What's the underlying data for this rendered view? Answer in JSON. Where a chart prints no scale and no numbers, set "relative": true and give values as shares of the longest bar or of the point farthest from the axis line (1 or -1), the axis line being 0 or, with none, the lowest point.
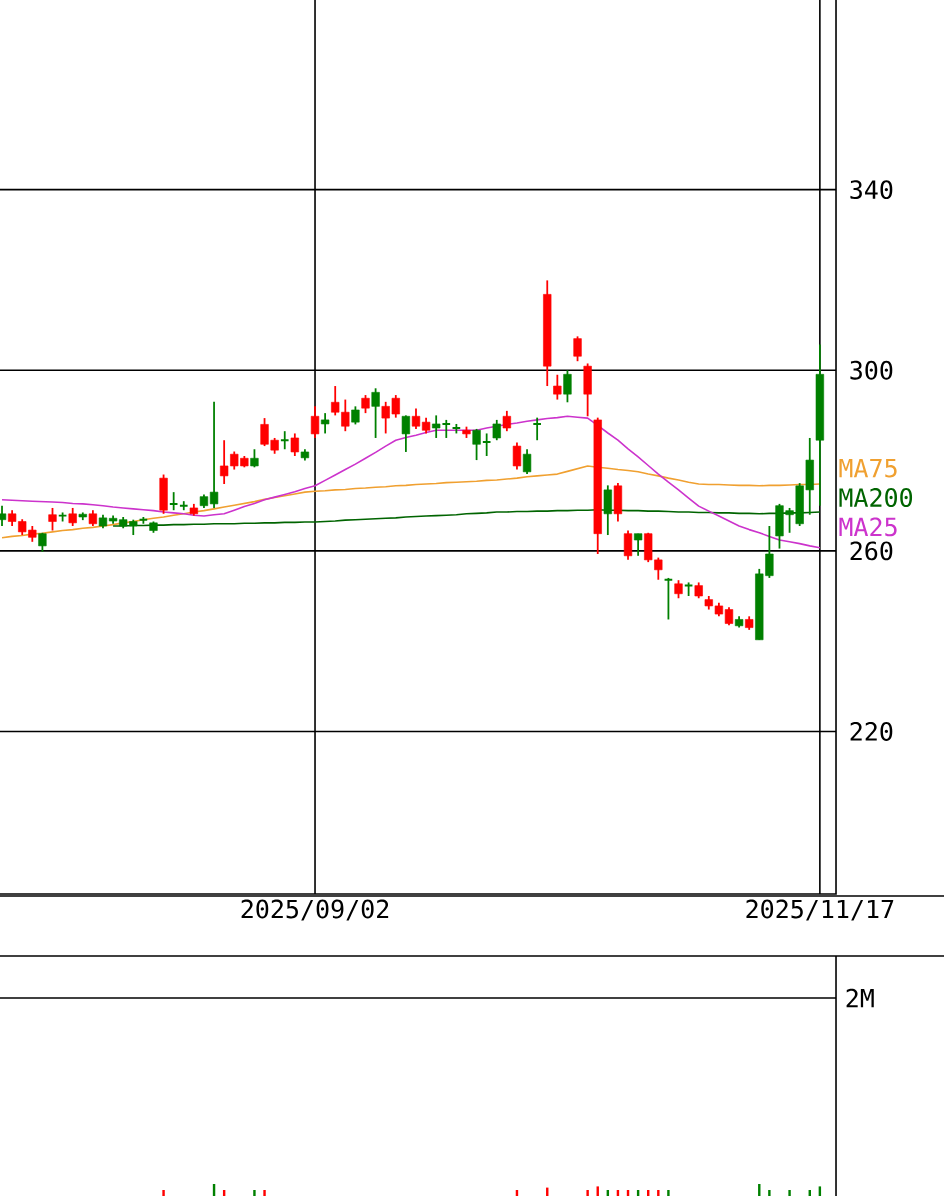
{
  "chart_data": [
    {
      "type": "candlestick",
      "categories": [
        null,
        null,
        null,
        null,
        null,
        null,
        null,
        null,
        null,
        null,
        null,
        null,
        null,
        null,
        null,
        null,
        null,
        null,
        null,
        null,
        null,
        null,
        null,
        null,
        null,
        null,
        null,
        null,
        null,
        null,
        null,
        "2025/09/02",
        null,
        null,
        null,
        null,
        null,
        null,
        null,
        null,
        null,
        null,
        null,
        null,
        null,
        null,
        null,
        null,
        null,
        null,
        null,
        null,
        null,
        null,
        null,
        null,
        null,
        null,
        null,
        null,
        null,
        null,
        null,
        null,
        null,
        null,
        null,
        null,
        null,
        null,
        null,
        null,
        null,
        null,
        null,
        null,
        null,
        null,
        null,
        null,
        null,
        "2025/11/17"
      ],
      "ohlc": [
        [
          266.9,
          270.0,
          265.5,
          268.2
        ],
        [
          268.2,
          269.0,
          265.5,
          266.5
        ],
        [
          266.5,
          267.0,
          263.5,
          264.2
        ],
        [
          264.6,
          265.5,
          262.0,
          263.0
        ],
        [
          261.1,
          264.0,
          259.8,
          263.8
        ],
        [
          268.0,
          269.5,
          264.5,
          266.5
        ],
        [
          267.8,
          268.5,
          266.5,
          267.8
        ],
        [
          268.2,
          269.5,
          265.5,
          266.2
        ],
        [
          267.5,
          268.5,
          266.8,
          268.1
        ],
        [
          268.2,
          269.0,
          265.5,
          266.0
        ],
        [
          265.5,
          268.0,
          265.0,
          267.3
        ],
        [
          266.6,
          267.8,
          266.0,
          267.2
        ],
        [
          265.5,
          267.5,
          265.0,
          266.9
        ],
        [
          265.5,
          266.9,
          263.5,
          266.5
        ],
        [
          266.9,
          267.5,
          266.0,
          266.9
        ],
        [
          264.5,
          266.5,
          264.0,
          266.2
        ],
        [
          276.1,
          276.9,
          268.2,
          269.0
        ],
        [
          270.4,
          273.0,
          269.0,
          270.4
        ],
        [
          270.0,
          271.0,
          269.0,
          270.0
        ],
        [
          269.5,
          270.4,
          267.8,
          268.2
        ],
        [
          270.0,
          272.5,
          269.5,
          272.0
        ],
        [
          270.4,
          293.0,
          269.5,
          273.0
        ],
        [
          278.8,
          284.5,
          274.8,
          276.6
        ],
        [
          281.4,
          282.0,
          278.0,
          278.8
        ],
        [
          280.5,
          281.0,
          278.5,
          278.8
        ],
        [
          278.8,
          282.5,
          278.5,
          280.5
        ],
        [
          288.0,
          289.4,
          283.2,
          283.6
        ],
        [
          284.5,
          285.0,
          281.5,
          282.3
        ],
        [
          284.5,
          286.5,
          282.5,
          284.5
        ],
        [
          285.0,
          286.0,
          281.0,
          281.9
        ],
        [
          280.6,
          282.5,
          280.0,
          281.9
        ],
        [
          289.8,
          292.0,
          285.0,
          285.9
        ],
        [
          288.1,
          290.5,
          286.0,
          289.0
        ],
        [
          292.9,
          296.5,
          290.0,
          290.7
        ],
        [
          290.7,
          293.5,
          286.5,
          287.6
        ],
        [
          288.5,
          292.0,
          288.0,
          291.2
        ],
        [
          293.8,
          294.5,
          290.5,
          291.6
        ],
        [
          292.0,
          296.0,
          285.0,
          295.1
        ],
        [
          292.0,
          293.0,
          286.0,
          289.4
        ],
        [
          293.8,
          294.5,
          289.5,
          290.3
        ],
        [
          285.9,
          290.0,
          281.9,
          289.8
        ],
        [
          289.8,
          291.5,
          287.0,
          287.6
        ],
        [
          288.5,
          289.5,
          286.0,
          286.7
        ],
        [
          287.2,
          290.0,
          285.0,
          288.1
        ],
        [
          288.1,
          289.0,
          285.0,
          288.1
        ],
        [
          287.2,
          288.1,
          286.0,
          287.2
        ],
        [
          286.7,
          287.5,
          285.0,
          285.9
        ],
        [
          283.6,
          287.0,
          280.1,
          286.7
        ],
        [
          284.1,
          286.0,
          281.0,
          284.1
        ],
        [
          285.0,
          289.0,
          284.5,
          288.1
        ],
        [
          289.8,
          291.0,
          286.5,
          287.2
        ],
        [
          283.2,
          284.0,
          278.0,
          278.8
        ],
        [
          277.5,
          282.5,
          277.0,
          281.4
        ],
        [
          288.1,
          289.5,
          284.5,
          288.1
        ],
        [
          316.8,
          319.9,
          296.5,
          300.9
        ],
        [
          296.5,
          299.0,
          293.5,
          294.7
        ],
        [
          294.7,
          300.0,
          292.9,
          299.1
        ],
        [
          307.0,
          307.5,
          302.0,
          303.1
        ],
        [
          300.9,
          301.5,
          289.8,
          294.7
        ],
        [
          289.0,
          289.5,
          259.3,
          263.8
        ],
        [
          268.2,
          274.5,
          263.5,
          273.5
        ],
        [
          274.4,
          275.0,
          266.5,
          268.2
        ],
        [
          263.8,
          264.5,
          258.0,
          258.9
        ],
        [
          262.4,
          263.8,
          258.9,
          263.8
        ],
        [
          263.8,
          264.0,
          257.5,
          258.0
        ],
        [
          258.0,
          258.5,
          253.6,
          255.8
        ],
        [
          253.6,
          254.0,
          244.8,
          253.6
        ],
        [
          252.7,
          253.5,
          249.5,
          250.5
        ],
        [
          252.3,
          253.0,
          250.0,
          252.3
        ],
        [
          252.3,
          253.0,
          249.5,
          250.0
        ],
        [
          249.2,
          250.0,
          247.0,
          247.8
        ],
        [
          247.8,
          248.5,
          245.5,
          246.0
        ],
        [
          247.0,
          247.5,
          243.5,
          243.9
        ],
        [
          243.4,
          245.5,
          243.0,
          244.8
        ],
        [
          244.8,
          245.5,
          242.5,
          243.0
        ],
        [
          240.3,
          256.0,
          240.3,
          254.9
        ],
        [
          254.5,
          265.5,
          254.0,
          259.3
        ],
        [
          263.3,
          270.4,
          260.5,
          270.0
        ],
        [
          268.0,
          269.5,
          264.0,
          268.9
        ],
        [
          266.0,
          275.0,
          265.5,
          274.4
        ],
        [
          273.5,
          285.0,
          268.0,
          280.1
        ],
        [
          284.5,
          305.7,
          270.0,
          299.1
        ]
      ],
      "colors": [
        "#008000",
        "#ff0000",
        "#ff0000",
        "#ff0000",
        "#008000",
        "#ff0000",
        "#008000",
        "#ff0000",
        "#008000",
        "#ff0000",
        "#008000",
        "#008000",
        "#008000",
        "#008000",
        "#008000",
        "#008000",
        "#ff0000",
        "#008000",
        "#008000",
        "#ff0000",
        "#008000",
        "#008000",
        "#ff0000",
        "#ff0000",
        "#ff0000",
        "#008000",
        "#ff0000",
        "#ff0000",
        "#008000",
        "#ff0000",
        "#008000",
        "#ff0000",
        "#008000",
        "#ff0000",
        "#ff0000",
        "#008000",
        "#ff0000",
        "#008000",
        "#ff0000",
        "#ff0000",
        "#008000",
        "#ff0000",
        "#ff0000",
        "#008000",
        "#008000",
        "#008000",
        "#ff0000",
        "#008000",
        "#008000",
        "#008000",
        "#ff0000",
        "#ff0000",
        "#008000",
        "#008000",
        "#ff0000",
        "#ff0000",
        "#008000",
        "#ff0000",
        "#ff0000",
        "#ff0000",
        "#008000",
        "#ff0000",
        "#ff0000",
        "#008000",
        "#ff0000",
        "#ff0000",
        "#008000",
        "#ff0000",
        "#008000",
        "#ff0000",
        "#ff0000",
        "#ff0000",
        "#ff0000",
        "#008000",
        "#ff0000",
        "#008000",
        "#008000",
        "#008000",
        "#008000",
        "#008000",
        "#008000",
        "#008000"
      ],
      "series": [
        {
          "type": "line",
          "name": "MA75",
          "color": "#f0a030",
          "values": [
            262.9,
            263.2,
            263.4,
            263.7,
            263.9,
            264.2,
            264.5,
            264.7,
            265.0,
            265.2,
            265.5,
            265.8,
            266.2,
            266.5,
            266.9,
            267.2,
            267.5,
            267.9,
            268.2,
            268.6,
            268.9,
            269.3,
            269.7,
            270.1,
            270.5,
            270.9,
            271.4,
            271.8,
            272.2,
            272.6,
            273.0,
            273.2,
            273.3,
            273.5,
            273.6,
            273.8,
            273.9,
            274.1,
            274.2,
            274.4,
            274.5,
            274.7,
            274.8,
            274.9,
            275.1,
            275.2,
            275.3,
            275.4,
            275.6,
            275.7,
            275.9,
            276.1,
            276.4,
            276.6,
            276.8,
            277.0,
            277.6,
            278.2,
            278.8,
            278.5,
            278.3,
            278.0,
            277.8,
            277.5,
            277.0,
            276.6,
            276.1,
            275.7,
            275.2,
            274.8,
            274.7,
            274.7,
            274.6,
            274.5,
            274.5,
            274.4,
            274.5,
            274.5,
            274.6,
            274.7,
            274.7,
            274.8
          ]
        },
        {
          "type": "line",
          "name": "MA200",
          "color": "#006400",
          "values": [
            null,
            null,
            null,
            null,
            null,
            null,
            null,
            null,
            null,
            null,
            null,
            265.5,
            265.5,
            265.6,
            265.6,
            265.7,
            265.7,
            265.8,
            265.8,
            265.9,
            265.9,
            266.0,
            266.0,
            266.0,
            266.1,
            266.1,
            266.2,
            266.2,
            266.3,
            266.3,
            266.4,
            266.4,
            266.5,
            266.6,
            266.8,
            266.9,
            267.0,
            267.1,
            267.2,
            267.3,
            267.5,
            267.6,
            267.7,
            267.8,
            267.9,
            268.0,
            268.2,
            268.3,
            268.4,
            268.6,
            268.6,
            268.7,
            268.7,
            268.8,
            268.8,
            268.9,
            268.9,
            269.0,
            269.0,
            269.1,
            269.0,
            269.0,
            268.9,
            268.9,
            268.8,
            268.8,
            268.7,
            268.6,
            268.6,
            268.5,
            268.5,
            268.4,
            268.4,
            268.3,
            268.3,
            268.2,
            268.3,
            268.3,
            268.4,
            268.4,
            268.5,
            268.6
          ]
        },
        {
          "type": "line",
          "name": "MA25",
          "color": "#cc33cc",
          "values": [
            271.3,
            271.2,
            271.1,
            271.0,
            270.9,
            270.8,
            270.7,
            270.5,
            270.4,
            270.2,
            270.0,
            269.7,
            269.5,
            269.3,
            269.1,
            268.9,
            268.6,
            268.4,
            268.2,
            267.9,
            267.7,
            268.0,
            268.2,
            269.0,
            269.8,
            270.5,
            271.3,
            271.9,
            272.5,
            273.1,
            273.8,
            274.4,
            275.6,
            276.8,
            278.0,
            279.2,
            280.5,
            281.8,
            283.2,
            284.5,
            285.1,
            285.6,
            286.2,
            286.7,
            286.7,
            286.7,
            286.7,
            286.7,
            287.2,
            287.6,
            288.0,
            288.3,
            288.7,
            289.0,
            289.3,
            289.5,
            289.8,
            289.6,
            289.4,
            287.8,
            286.1,
            284.5,
            282.6,
            280.8,
            278.9,
            277.0,
            275.2,
            273.5,
            271.7,
            269.9,
            268.8,
            267.7,
            266.6,
            265.5,
            264.7,
            264.0,
            263.2,
            262.4,
            262.0,
            261.6,
            261.1,
            260.7
          ]
        }
      ],
      "ylim": [
        184,
        382
      ],
      "yticks": [
        220,
        260,
        300,
        340
      ],
      "grid": true
    },
    {
      "type": "bar",
      "relative": true,
      "categories": [
        null,
        null,
        null,
        null,
        null,
        null,
        null,
        null,
        null,
        null,
        null,
        null,
        null,
        null,
        null,
        null,
        null,
        null,
        null,
        null,
        null,
        null,
        null,
        null,
        null,
        null,
        null,
        null,
        null,
        null,
        null,
        null,
        null,
        null,
        null,
        null,
        null,
        null,
        null,
        null,
        null,
        null,
        null,
        null,
        null,
        null,
        null,
        null,
        null,
        null,
        null,
        null,
        null,
        null,
        null,
        null,
        null,
        null,
        null,
        null,
        null,
        null,
        null,
        null,
        null,
        null,
        null,
        null,
        null,
        null,
        null,
        null,
        null,
        null,
        null,
        null,
        null,
        null,
        null,
        null,
        null,
        null
      ],
      "values": [
        null,
        null,
        null,
        null,
        null,
        null,
        null,
        null,
        null,
        null,
        null,
        null,
        null,
        null,
        null,
        null,
        0.5,
        null,
        null,
        null,
        null,
        1,
        0.5,
        null,
        null,
        0.5,
        0.5,
        null,
        null,
        null,
        null,
        null,
        null,
        null,
        null,
        null,
        null,
        null,
        null,
        null,
        null,
        null,
        null,
        null,
        null,
        null,
        null,
        null,
        null,
        null,
        null,
        0.5,
        null,
        null,
        0.7,
        null,
        null,
        null,
        0.5,
        0.8,
        0.5,
        0.5,
        0.5,
        0.5,
        0.5,
        0.5,
        0.5,
        null,
        null,
        null,
        null,
        null,
        null,
        null,
        null,
        1,
        0.5,
        null,
        0.5,
        null,
        0.5,
        0.8
      ],
      "colors": [
        null,
        null,
        null,
        null,
        null,
        null,
        null,
        null,
        null,
        null,
        null,
        null,
        null,
        null,
        null,
        null,
        "#ff0000",
        null,
        null,
        null,
        null,
        "#008000",
        "#ff0000",
        null,
        null,
        "#008000",
        "#ff0000",
        null,
        null,
        null,
        null,
        null,
        null,
        null,
        null,
        null,
        null,
        null,
        null,
        null,
        null,
        null,
        null,
        null,
        null,
        null,
        null,
        null,
        null,
        null,
        null,
        "#ff0000",
        null,
        null,
        "#ff0000",
        null,
        null,
        null,
        "#ff0000",
        "#ff0000",
        "#008000",
        "#ff0000",
        "#ff0000",
        "#008000",
        "#ff0000",
        "#ff0000",
        "#008000",
        null,
        null,
        null,
        null,
        null,
        null,
        null,
        null,
        "#008000",
        "#008000",
        null,
        "#008000",
        null,
        "#008000",
        "#008000"
      ],
      "annotations": [
        "2M"
      ]
    }
  ]
}
